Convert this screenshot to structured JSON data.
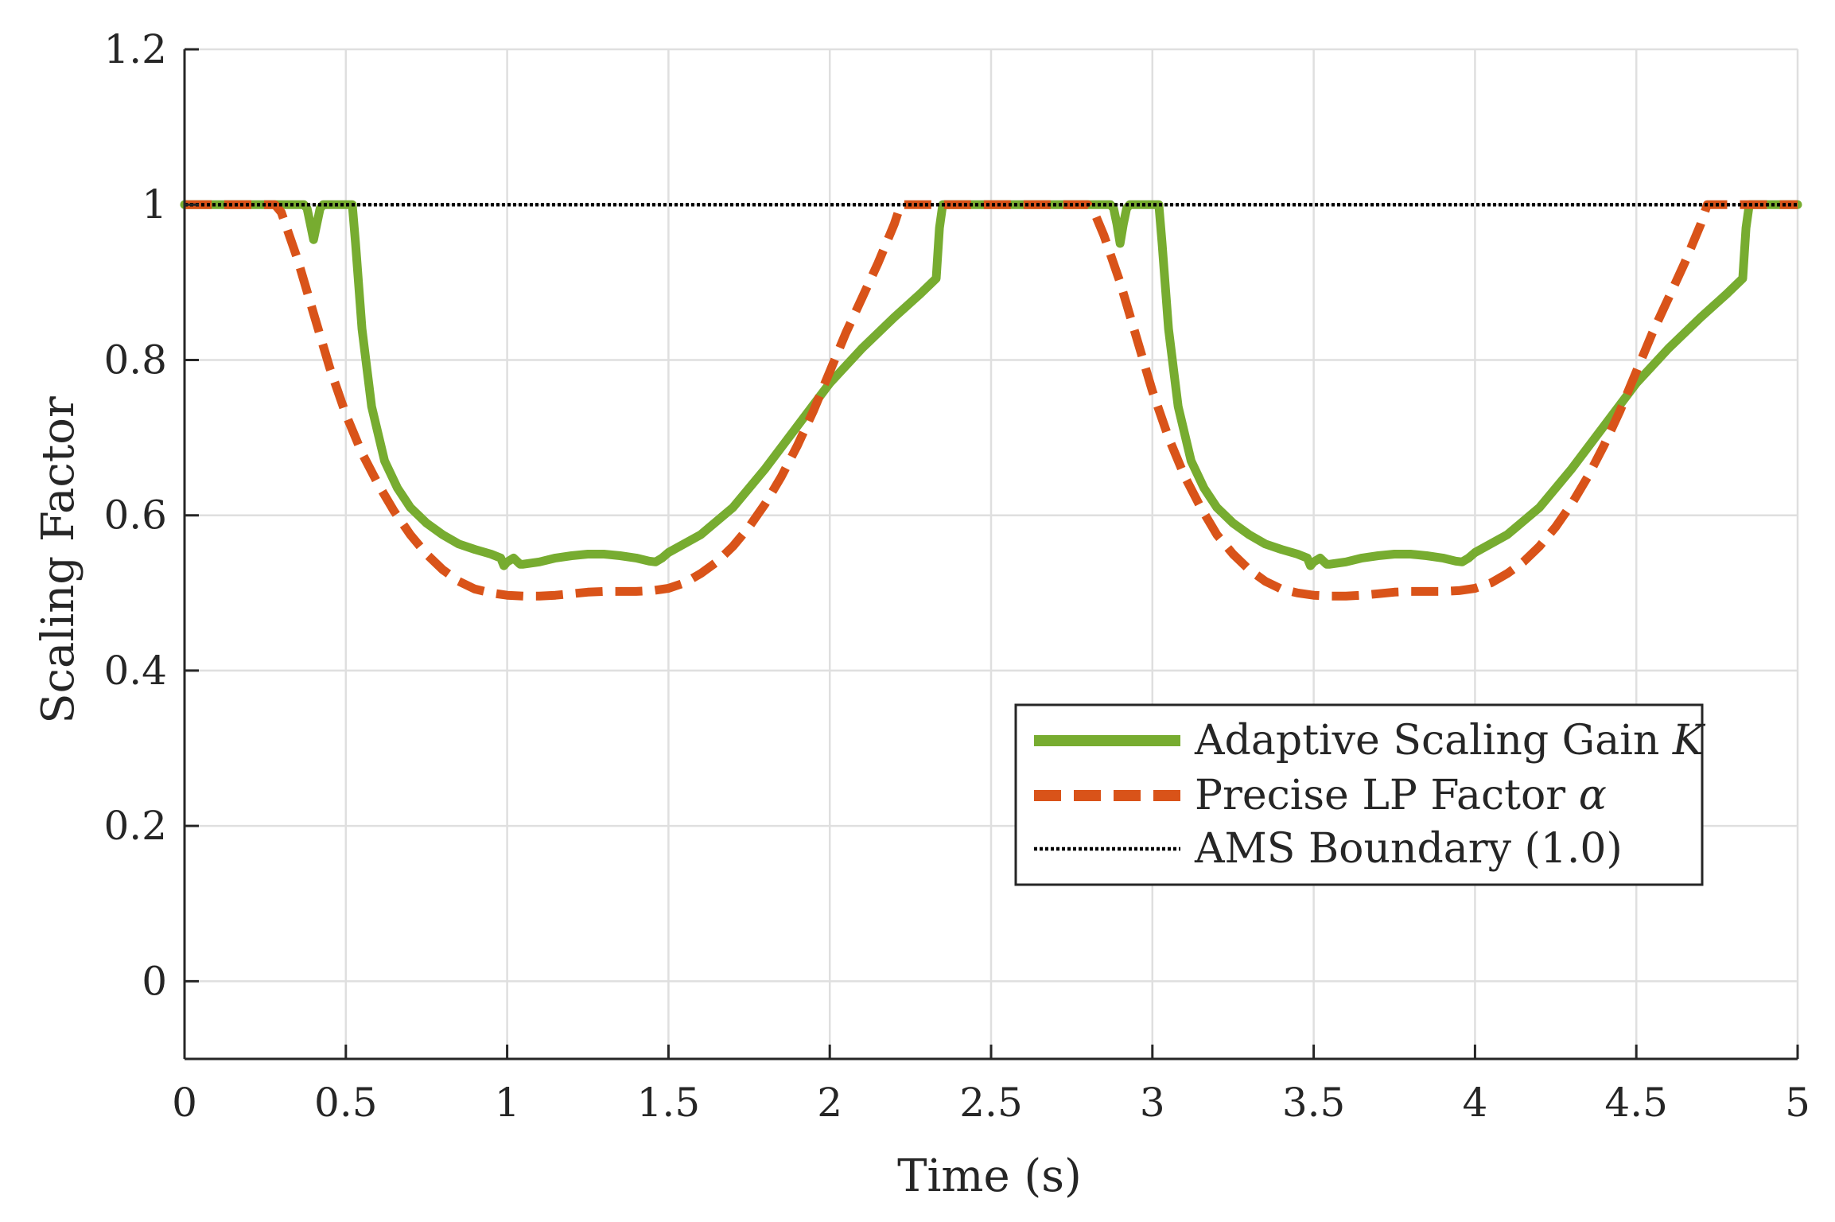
{
  "chart_data": {
    "type": "line",
    "title": "",
    "xlabel": "Time (s)",
    "ylabel": "Scaling Factor",
    "xlim": [
      0,
      5
    ],
    "ylim": [
      -0.1,
      1.2
    ],
    "xticks": [
      0,
      0.5,
      1,
      1.5,
      2,
      2.5,
      3,
      3.5,
      4,
      4.5,
      5
    ],
    "xtick_labels": [
      "0",
      "0.5",
      "1",
      "1.5",
      "2",
      "2.5",
      "3",
      "3.5",
      "4",
      "4.5",
      "5"
    ],
    "yticks": [
      0,
      0.2,
      0.4,
      0.6,
      0.8,
      1,
      1.2
    ],
    "ytick_labels": [
      "0",
      "0.2",
      "0.4",
      "0.6",
      "0.8",
      "1",
      "1.2"
    ],
    "grid": true,
    "legend_position": "lower-right",
    "series": [
      {
        "name": "Adaptive Scaling Gain",
        "legend_symbol": "K",
        "color": "#77AC30",
        "style": "solid",
        "x": [
          0,
          0.37,
          0.38,
          0.39,
          0.4,
          0.41,
          0.42,
          0.43,
          0.52,
          0.53,
          0.55,
          0.58,
          0.62,
          0.66,
          0.7,
          0.75,
          0.8,
          0.85,
          0.9,
          0.95,
          0.98,
          0.99,
          1.0,
          1.02,
          1.04,
          1.05,
          1.1,
          1.15,
          1.2,
          1.25,
          1.3,
          1.35,
          1.4,
          1.44,
          1.46,
          1.48,
          1.5,
          1.6,
          1.7,
          1.8,
          1.9,
          2.0,
          2.1,
          2.2,
          2.28,
          2.33,
          2.34,
          2.35,
          2.8,
          2.87,
          2.88,
          2.89,
          2.9,
          2.91,
          2.92,
          2.93,
          3.02,
          3.03,
          3.05,
          3.08,
          3.12,
          3.16,
          3.2,
          3.25,
          3.3,
          3.35,
          3.4,
          3.45,
          3.48,
          3.49,
          3.5,
          3.52,
          3.54,
          3.55,
          3.6,
          3.65,
          3.7,
          3.75,
          3.8,
          3.85,
          3.9,
          3.94,
          3.96,
          3.98,
          4.0,
          4.1,
          4.2,
          4.3,
          4.4,
          4.5,
          4.6,
          4.7,
          4.78,
          4.83,
          4.84,
          4.85,
          5.0
        ],
        "y": [
          1,
          1,
          0.995,
          0.975,
          0.955,
          0.975,
          0.995,
          1,
          1,
          0.95,
          0.84,
          0.74,
          0.67,
          0.635,
          0.61,
          0.59,
          0.575,
          0.563,
          0.556,
          0.55,
          0.545,
          0.535,
          0.54,
          0.545,
          0.537,
          0.537,
          0.54,
          0.545,
          0.548,
          0.55,
          0.55,
          0.548,
          0.545,
          0.541,
          0.54,
          0.545,
          0.552,
          0.575,
          0.61,
          0.66,
          0.715,
          0.77,
          0.815,
          0.855,
          0.885,
          0.905,
          0.97,
          1,
          1,
          1,
          0.995,
          0.975,
          0.95,
          0.975,
          0.995,
          1,
          1,
          0.95,
          0.84,
          0.74,
          0.67,
          0.635,
          0.61,
          0.59,
          0.575,
          0.563,
          0.556,
          0.55,
          0.545,
          0.535,
          0.54,
          0.545,
          0.537,
          0.537,
          0.54,
          0.545,
          0.548,
          0.55,
          0.55,
          0.548,
          0.545,
          0.541,
          0.54,
          0.545,
          0.552,
          0.575,
          0.61,
          0.66,
          0.715,
          0.77,
          0.815,
          0.855,
          0.885,
          0.905,
          0.97,
          1,
          1
        ]
      },
      {
        "name": "Precise LP Factor",
        "legend_symbol": "α",
        "color": "#D95319",
        "style": "dashed",
        "x": [
          0,
          0.28,
          0.3,
          0.35,
          0.4,
          0.45,
          0.5,
          0.55,
          0.6,
          0.65,
          0.7,
          0.75,
          0.8,
          0.85,
          0.9,
          0.95,
          1.0,
          1.05,
          1.1,
          1.15,
          1.2,
          1.25,
          1.3,
          1.35,
          1.4,
          1.45,
          1.5,
          1.55,
          1.6,
          1.65,
          1.7,
          1.75,
          1.8,
          1.85,
          1.9,
          1.95,
          2.0,
          2.05,
          2.1,
          2.15,
          2.2,
          2.22,
          2.8,
          2.82,
          2.85,
          2.9,
          2.95,
          3.0,
          3.05,
          3.1,
          3.15,
          3.2,
          3.25,
          3.3,
          3.35,
          3.4,
          3.45,
          3.5,
          3.55,
          3.6,
          3.65,
          3.7,
          3.75,
          3.8,
          3.85,
          3.9,
          3.95,
          4.0,
          4.05,
          4.1,
          4.15,
          4.2,
          4.25,
          4.3,
          4.35,
          4.4,
          4.45,
          4.5,
          4.55,
          4.6,
          4.65,
          4.7,
          4.72,
          5.0
        ],
        "y": [
          1,
          1,
          0.99,
          0.93,
          0.86,
          0.79,
          0.73,
          0.68,
          0.64,
          0.605,
          0.575,
          0.55,
          0.53,
          0.515,
          0.505,
          0.5,
          0.497,
          0.496,
          0.496,
          0.497,
          0.499,
          0.501,
          0.502,
          0.502,
          0.502,
          0.503,
          0.506,
          0.513,
          0.525,
          0.54,
          0.56,
          0.585,
          0.615,
          0.65,
          0.69,
          0.735,
          0.785,
          0.835,
          0.88,
          0.925,
          0.975,
          1,
          1,
          0.99,
          0.96,
          0.9,
          0.83,
          0.76,
          0.7,
          0.65,
          0.61,
          0.575,
          0.55,
          0.53,
          0.515,
          0.505,
          0.5,
          0.497,
          0.496,
          0.496,
          0.497,
          0.499,
          0.501,
          0.502,
          0.502,
          0.502,
          0.503,
          0.506,
          0.513,
          0.525,
          0.54,
          0.56,
          0.585,
          0.615,
          0.65,
          0.69,
          0.735,
          0.785,
          0.835,
          0.88,
          0.925,
          0.975,
          1,
          1
        ]
      },
      {
        "name": "AMS Boundary (1.0)",
        "legend_symbol": "",
        "color": "#000000",
        "style": "dotted",
        "x": [
          0,
          5
        ],
        "y": [
          1,
          1
        ]
      }
    ]
  }
}
